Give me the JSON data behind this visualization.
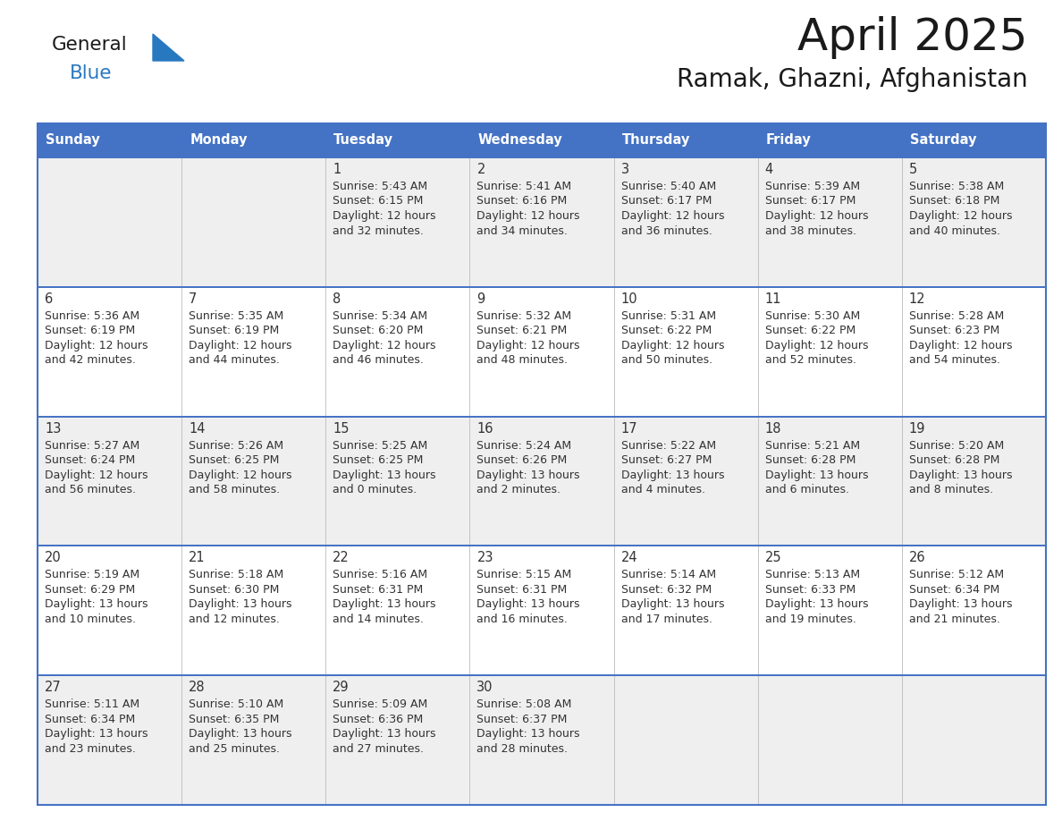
{
  "title": "April 2025",
  "subtitle": "Ramak, Ghazni, Afghanistan",
  "days_of_week": [
    "Sunday",
    "Monday",
    "Tuesday",
    "Wednesday",
    "Thursday",
    "Friday",
    "Saturday"
  ],
  "header_bg": "#4472C4",
  "header_text_color": "#FFFFFF",
  "cell_bg_odd": "#EFEFEF",
  "cell_bg_even": "#FFFFFF",
  "text_color": "#333333",
  "border_color": "#4472C4",
  "logo_triangle_color": "#2878C0",
  "logo_blue_color": "#2878C0",
  "calendar_data": [
    [
      null,
      null,
      {
        "day": "1",
        "sunrise": "5:43 AM",
        "sunset": "6:15 PM",
        "dl1": "Daylight: 12 hours",
        "dl2": "and 32 minutes."
      },
      {
        "day": "2",
        "sunrise": "5:41 AM",
        "sunset": "6:16 PM",
        "dl1": "Daylight: 12 hours",
        "dl2": "and 34 minutes."
      },
      {
        "day": "3",
        "sunrise": "5:40 AM",
        "sunset": "6:17 PM",
        "dl1": "Daylight: 12 hours",
        "dl2": "and 36 minutes."
      },
      {
        "day": "4",
        "sunrise": "5:39 AM",
        "sunset": "6:17 PM",
        "dl1": "Daylight: 12 hours",
        "dl2": "and 38 minutes."
      },
      {
        "day": "5",
        "sunrise": "5:38 AM",
        "sunset": "6:18 PM",
        "dl1": "Daylight: 12 hours",
        "dl2": "and 40 minutes."
      }
    ],
    [
      {
        "day": "6",
        "sunrise": "5:36 AM",
        "sunset": "6:19 PM",
        "dl1": "Daylight: 12 hours",
        "dl2": "and 42 minutes."
      },
      {
        "day": "7",
        "sunrise": "5:35 AM",
        "sunset": "6:19 PM",
        "dl1": "Daylight: 12 hours",
        "dl2": "and 44 minutes."
      },
      {
        "day": "8",
        "sunrise": "5:34 AM",
        "sunset": "6:20 PM",
        "dl1": "Daylight: 12 hours",
        "dl2": "and 46 minutes."
      },
      {
        "day": "9",
        "sunrise": "5:32 AM",
        "sunset": "6:21 PM",
        "dl1": "Daylight: 12 hours",
        "dl2": "and 48 minutes."
      },
      {
        "day": "10",
        "sunrise": "5:31 AM",
        "sunset": "6:22 PM",
        "dl1": "Daylight: 12 hours",
        "dl2": "and 50 minutes."
      },
      {
        "day": "11",
        "sunrise": "5:30 AM",
        "sunset": "6:22 PM",
        "dl1": "Daylight: 12 hours",
        "dl2": "and 52 minutes."
      },
      {
        "day": "12",
        "sunrise": "5:28 AM",
        "sunset": "6:23 PM",
        "dl1": "Daylight: 12 hours",
        "dl2": "and 54 minutes."
      }
    ],
    [
      {
        "day": "13",
        "sunrise": "5:27 AM",
        "sunset": "6:24 PM",
        "dl1": "Daylight: 12 hours",
        "dl2": "and 56 minutes."
      },
      {
        "day": "14",
        "sunrise": "5:26 AM",
        "sunset": "6:25 PM",
        "dl1": "Daylight: 12 hours",
        "dl2": "and 58 minutes."
      },
      {
        "day": "15",
        "sunrise": "5:25 AM",
        "sunset": "6:25 PM",
        "dl1": "Daylight: 13 hours",
        "dl2": "and 0 minutes."
      },
      {
        "day": "16",
        "sunrise": "5:24 AM",
        "sunset": "6:26 PM",
        "dl1": "Daylight: 13 hours",
        "dl2": "and 2 minutes."
      },
      {
        "day": "17",
        "sunrise": "5:22 AM",
        "sunset": "6:27 PM",
        "dl1": "Daylight: 13 hours",
        "dl2": "and 4 minutes."
      },
      {
        "day": "18",
        "sunrise": "5:21 AM",
        "sunset": "6:28 PM",
        "dl1": "Daylight: 13 hours",
        "dl2": "and 6 minutes."
      },
      {
        "day": "19",
        "sunrise": "5:20 AM",
        "sunset": "6:28 PM",
        "dl1": "Daylight: 13 hours",
        "dl2": "and 8 minutes."
      }
    ],
    [
      {
        "day": "20",
        "sunrise": "5:19 AM",
        "sunset": "6:29 PM",
        "dl1": "Daylight: 13 hours",
        "dl2": "and 10 minutes."
      },
      {
        "day": "21",
        "sunrise": "5:18 AM",
        "sunset": "6:30 PM",
        "dl1": "Daylight: 13 hours",
        "dl2": "and 12 minutes."
      },
      {
        "day": "22",
        "sunrise": "5:16 AM",
        "sunset": "6:31 PM",
        "dl1": "Daylight: 13 hours",
        "dl2": "and 14 minutes."
      },
      {
        "day": "23",
        "sunrise": "5:15 AM",
        "sunset": "6:31 PM",
        "dl1": "Daylight: 13 hours",
        "dl2": "and 16 minutes."
      },
      {
        "day": "24",
        "sunrise": "5:14 AM",
        "sunset": "6:32 PM",
        "dl1": "Daylight: 13 hours",
        "dl2": "and 17 minutes."
      },
      {
        "day": "25",
        "sunrise": "5:13 AM",
        "sunset": "6:33 PM",
        "dl1": "Daylight: 13 hours",
        "dl2": "and 19 minutes."
      },
      {
        "day": "26",
        "sunrise": "5:12 AM",
        "sunset": "6:34 PM",
        "dl1": "Daylight: 13 hours",
        "dl2": "and 21 minutes."
      }
    ],
    [
      {
        "day": "27",
        "sunrise": "5:11 AM",
        "sunset": "6:34 PM",
        "dl1": "Daylight: 13 hours",
        "dl2": "and 23 minutes."
      },
      {
        "day": "28",
        "sunrise": "5:10 AM",
        "sunset": "6:35 PM",
        "dl1": "Daylight: 13 hours",
        "dl2": "and 25 minutes."
      },
      {
        "day": "29",
        "sunrise": "5:09 AM",
        "sunset": "6:36 PM",
        "dl1": "Daylight: 13 hours",
        "dl2": "and 27 minutes."
      },
      {
        "day": "30",
        "sunrise": "5:08 AM",
        "sunset": "6:37 PM",
        "dl1": "Daylight: 13 hours",
        "dl2": "and 28 minutes."
      },
      null,
      null,
      null
    ]
  ]
}
